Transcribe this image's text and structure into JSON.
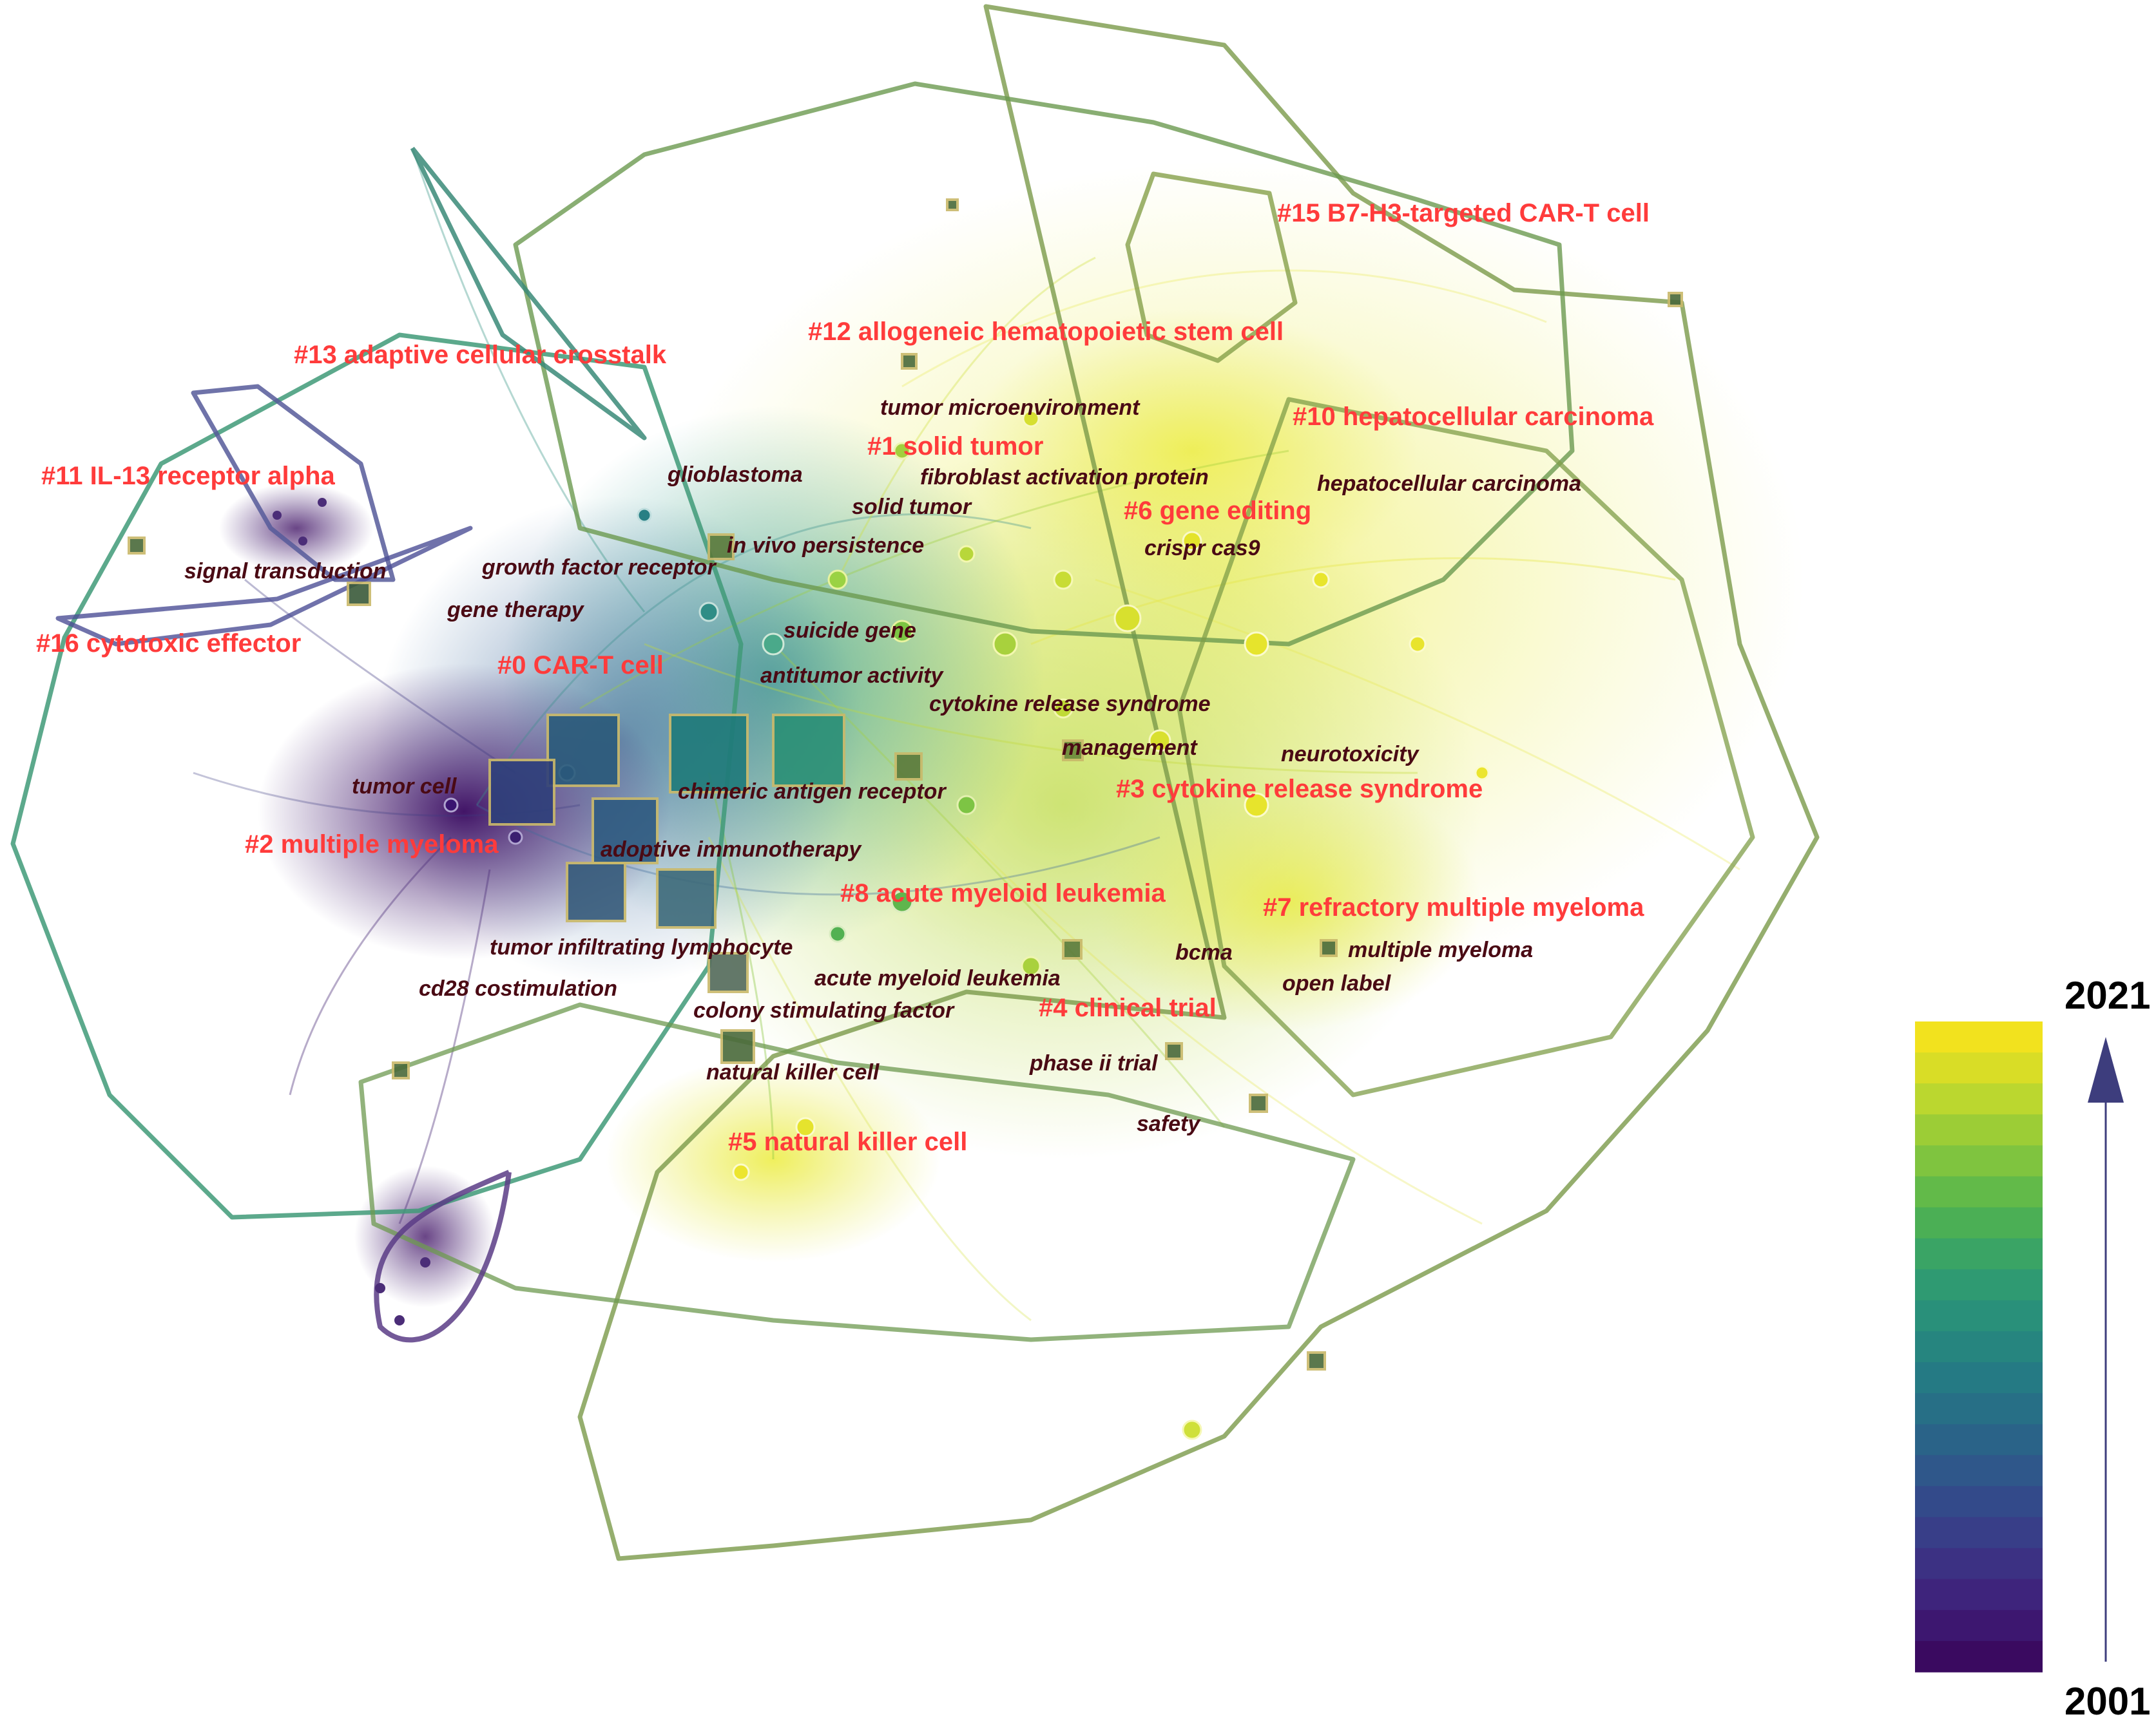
{
  "clusters": [
    {
      "id": "c0",
      "text": "#0 CAR-T cell"
    },
    {
      "id": "c1",
      "text": "#1 solid tumor"
    },
    {
      "id": "c2",
      "text": "#2 multiple myeloma"
    },
    {
      "id": "c3",
      "text": "#3 cytokine release syndrome"
    },
    {
      "id": "c4",
      "text": "#4 clinical trial"
    },
    {
      "id": "c5",
      "text": "#5 natural killer cell"
    },
    {
      "id": "c6",
      "text": "#6 gene editing"
    },
    {
      "id": "c7",
      "text": "#7 refractory multiple myeloma"
    },
    {
      "id": "c8",
      "text": "#8 acute myeloid leukemia"
    },
    {
      "id": "c10",
      "text": "#10 hepatocellular carcinoma"
    },
    {
      "id": "c11",
      "text": "#11 IL-13 receptor alpha"
    },
    {
      "id": "c12",
      "text": "#12 allogeneic hematopoietic stem cell"
    },
    {
      "id": "c13",
      "text": "#13 adaptive cellular crosstalk"
    },
    {
      "id": "c15",
      "text": "#15 B7-H3-targeted CAR-T cell"
    },
    {
      "id": "c16",
      "text": "#16 cytotoxic effector"
    }
  ],
  "keywords": [
    {
      "id": "k1",
      "text": "tumor microenvironment"
    },
    {
      "id": "k2",
      "text": "glioblastoma"
    },
    {
      "id": "k3",
      "text": "fibroblast activation protein"
    },
    {
      "id": "k4",
      "text": "hepatocellular carcinoma"
    },
    {
      "id": "k5",
      "text": "solid tumor"
    },
    {
      "id": "k6",
      "text": "in vivo persistence"
    },
    {
      "id": "k7",
      "text": "crispr cas9"
    },
    {
      "id": "k8",
      "text": "signal transduction"
    },
    {
      "id": "k9",
      "text": "growth factor receptor"
    },
    {
      "id": "k10",
      "text": "gene therapy"
    },
    {
      "id": "k11",
      "text": "suicide gene"
    },
    {
      "id": "k12",
      "text": "antitumor activity"
    },
    {
      "id": "k13",
      "text": "cytokine release syndrome"
    },
    {
      "id": "k14",
      "text": "management"
    },
    {
      "id": "k15",
      "text": "neurotoxicity"
    },
    {
      "id": "k16",
      "text": "tumor cell"
    },
    {
      "id": "k17",
      "text": "chimeric antigen receptor"
    },
    {
      "id": "k18",
      "text": "adoptive immunotherapy"
    },
    {
      "id": "k19",
      "text": "tumor infiltrating lymphocyte"
    },
    {
      "id": "k20",
      "text": "bcma"
    },
    {
      "id": "k21",
      "text": "multiple myeloma"
    },
    {
      "id": "k22",
      "text": "cd28 costimulation"
    },
    {
      "id": "k23",
      "text": "acute myeloid leukemia"
    },
    {
      "id": "k24",
      "text": "open label"
    },
    {
      "id": "k25",
      "text": "colony stimulating factor"
    },
    {
      "id": "k26",
      "text": "natural killer cell"
    },
    {
      "id": "k27",
      "text": "phase ii trial"
    },
    {
      "id": "k28",
      "text": "safety"
    }
  ],
  "colorbar": {
    "year_top": "2021",
    "year_bottom": "2001",
    "colors": [
      "#f2e21e",
      "#d9dd26",
      "#bbd72f",
      "#9ccd36",
      "#7fc43f",
      "#62ba49",
      "#4baf55",
      "#3aa465",
      "#2f9a72",
      "#29907a",
      "#26857f",
      "#257a84",
      "#276f86",
      "#2a6388",
      "#2f578a",
      "#334a8a",
      "#383e88",
      "#3c3183",
      "#3e247c",
      "#3d1770",
      "#3a0a60"
    ]
  },
  "palette": {
    "cluster_label": "#ff3b3b",
    "keyword_label": "#4a0a14",
    "frame_line": "#7a9a4a",
    "arrow": "#3d3d7d"
  }
}
